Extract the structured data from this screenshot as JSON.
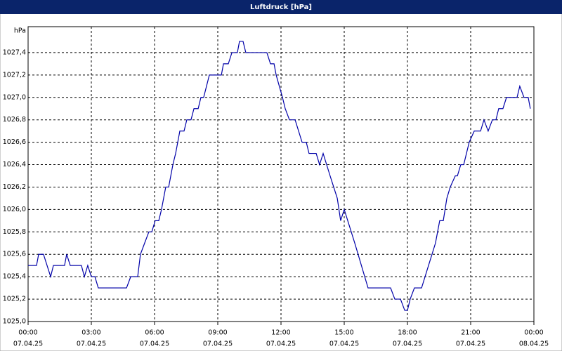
{
  "chart_data": {
    "type": "line",
    "title": "Luftdruck [hPa]",
    "y_unit": "hPa",
    "color": "#0000a8",
    "grid": true,
    "ylim": [
      1025.0,
      1027.6
    ],
    "yticks": [
      {
        "value": 1025.0,
        "label": "1025,0"
      },
      {
        "value": 1025.2,
        "label": "1025,2"
      },
      {
        "value": 1025.4,
        "label": "1025,4"
      },
      {
        "value": 1025.6,
        "label": "1025,6"
      },
      {
        "value": 1025.8,
        "label": "1025,8"
      },
      {
        "value": 1026.0,
        "label": "1026,0"
      },
      {
        "value": 1026.2,
        "label": "1026,2"
      },
      {
        "value": 1026.4,
        "label": "1026,4"
      },
      {
        "value": 1026.6,
        "label": "1026,6"
      },
      {
        "value": 1026.8,
        "label": "1026,8"
      },
      {
        "value": 1027.0,
        "label": "1027,0"
      },
      {
        "value": 1027.2,
        "label": "1027,2"
      },
      {
        "value": 1027.4,
        "label": "1027,4"
      }
    ],
    "xlim": [
      0,
      24
    ],
    "xticks": [
      {
        "value": 0,
        "label": "00:00"
      },
      {
        "value": 3,
        "label": "03:00"
      },
      {
        "value": 6,
        "label": "06:00"
      },
      {
        "value": 9,
        "label": "09:00"
      },
      {
        "value": 12,
        "label": "12:00"
      },
      {
        "value": 15,
        "label": "15:00"
      },
      {
        "value": 18,
        "label": "18:00"
      },
      {
        "value": 21,
        "label": "21:00"
      },
      {
        "value": 24,
        "label": "00:00"
      }
    ],
    "xtick_dates": [
      "07.04.25",
      "07.04.25",
      "07.04.25",
      "07.04.25",
      "07.04.25",
      "07.04.25",
      "07.04.25",
      "07.04.25",
      "08.04.25"
    ],
    "x": [
      0,
      0.4,
      0.5,
      0.73,
      1.07,
      1.2,
      1.73,
      1.83,
      2.0,
      2.53,
      2.67,
      2.83,
      3.0,
      3.17,
      3.33,
      4.67,
      4.87,
      5.2,
      5.33,
      5.53,
      5.73,
      5.87,
      6.03,
      6.2,
      6.33,
      6.53,
      6.67,
      6.87,
      7.0,
      7.2,
      7.4,
      7.53,
      7.73,
      7.87,
      8.07,
      8.2,
      8.33,
      8.6,
      9.17,
      9.27,
      9.5,
      9.67,
      9.93,
      10.03,
      10.2,
      10.33,
      11.33,
      11.5,
      11.67,
      11.77,
      12.07,
      12.2,
      12.4,
      12.67,
      13.0,
      13.2,
      13.33,
      13.67,
      13.83,
      14.0,
      14.33,
      14.67,
      14.83,
      15.0,
      15.5,
      16.13,
      17.2,
      17.4,
      17.67,
      17.87,
      18.0,
      18.13,
      18.33,
      18.67,
      19.0,
      19.33,
      19.53,
      19.7,
      19.87,
      20.03,
      20.27,
      20.37,
      20.53,
      20.67,
      20.93,
      21.17,
      21.47,
      21.63,
      21.83,
      22.03,
      22.2,
      22.33,
      22.53,
      22.7,
      23.2,
      23.33,
      23.53,
      23.73,
      23.83
    ],
    "values": [
      1025.5,
      1025.5,
      1025.6,
      1025.6,
      1025.4,
      1025.5,
      1025.5,
      1025.6,
      1025.5,
      1025.5,
      1025.4,
      1025.5,
      1025.4,
      1025.4,
      1025.3,
      1025.3,
      1025.4,
      1025.4,
      1025.6,
      1025.7,
      1025.8,
      1025.8,
      1025.9,
      1025.9,
      1026.0,
      1026.2,
      1026.2,
      1026.4,
      1026.5,
      1026.7,
      1026.7,
      1026.8,
      1026.8,
      1026.9,
      1026.9,
      1027.0,
      1027.0,
      1027.2,
      1027.2,
      1027.3,
      1027.3,
      1027.4,
      1027.4,
      1027.5,
      1027.5,
      1027.4,
      1027.4,
      1027.3,
      1027.3,
      1027.2,
      1027.0,
      1026.9,
      1026.8,
      1026.8,
      1026.6,
      1026.6,
      1026.5,
      1026.5,
      1026.4,
      1026.5,
      1026.3,
      1026.1,
      1025.9,
      1026.0,
      1025.7,
      1025.3,
      1025.3,
      1025.2,
      1025.2,
      1025.1,
      1025.1,
      1025.2,
      1025.3,
      1025.3,
      1025.5,
      1025.7,
      1025.9,
      1025.9,
      1026.1,
      1026.2,
      1026.3,
      1026.3,
      1026.4,
      1026.4,
      1026.6,
      1026.7,
      1026.7,
      1026.8,
      1026.7,
      1026.8,
      1026.8,
      1026.9,
      1026.9,
      1027.0,
      1027.0,
      1027.1,
      1027.0,
      1027.0,
      1026.9
    ]
  }
}
